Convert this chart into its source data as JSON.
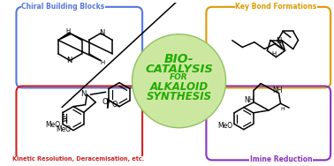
{
  "title_line1": "BIO-",
  "title_line2": "CATALYSIS",
  "title_line3": "FOR",
  "title_line4": "ALKALOID",
  "title_line5": "SYNTHESIS",
  "circle_color": "#cce8a0",
  "circle_edge": "#90c060",
  "text_green": "#22aa00",
  "box_blue": "#5577dd",
  "box_orange": "#dd9900",
  "box_red": "#cc2222",
  "box_purple": "#8833bb",
  "label_blue": "Chiral Building Blocks",
  "label_orange": "Key Bond Formations",
  "label_red": "Kinetic Resolution, Deracemisation, etc.",
  "label_purple": "Imine Reduction",
  "bg_color": "#ffffff",
  "fig_width": 3.78,
  "fig_height": 1.88,
  "dpi": 100
}
